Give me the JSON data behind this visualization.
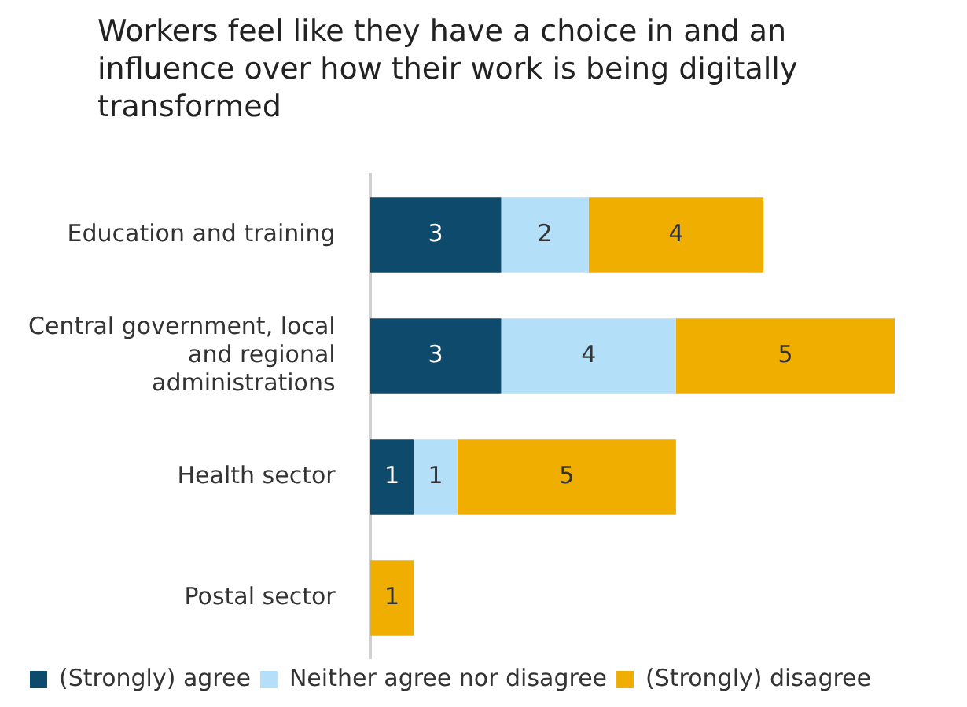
{
  "chart_data": {
    "type": "bar",
    "orientation": "horizontal",
    "stacked": true,
    "data_labels": true,
    "title": "Workers feel like they have a choice in and an influence over how their work is being digitally transformed",
    "categories": [
      "Education and training",
      "Central government, local and regional administrations",
      "Health sector",
      "Postal sector"
    ],
    "series": [
      {
        "name": "(Strongly) agree",
        "color": "#0d4a6b",
        "values": [
          3,
          3,
          1,
          null
        ]
      },
      {
        "name": "Neither agree nor disagree",
        "color": "#b4dff9",
        "values": [
          2,
          4,
          1,
          null
        ]
      },
      {
        "name": "(Strongly) disagree",
        "color": "#f0ae00",
        "values": [
          4,
          5,
          5,
          1
        ]
      }
    ],
    "legend": "bottom"
  }
}
